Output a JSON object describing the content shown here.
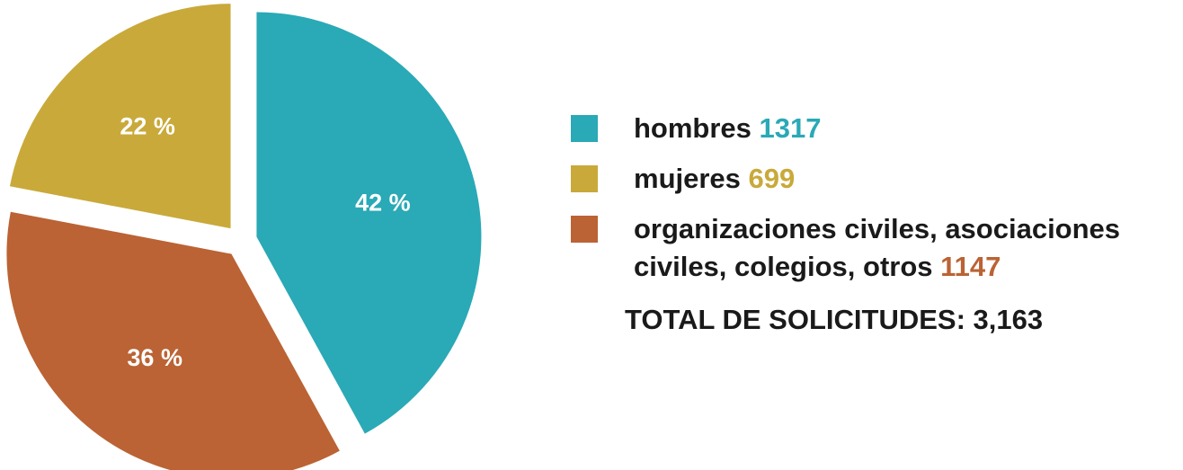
{
  "chart_data": {
    "type": "pie",
    "series": [
      {
        "name": "hombres",
        "color": "#2aa9b6",
        "values": [
          42
        ],
        "value_labels": [
          "42 %"
        ],
        "count": 1317
      },
      {
        "name": "mujeres",
        "color": "#c9a93a",
        "values": [
          22
        ],
        "value_labels": [
          "22 %"
        ],
        "count": 699
      },
      {
        "name": "organizaciones civiles, asociaciones civiles, colegios, otros",
        "color": "#bb6334",
        "values": [
          36
        ],
        "value_labels": [
          "36 %"
        ],
        "count": 1147
      }
    ],
    "annotation": "TOTAL DE SOLICITUDES: 3,163"
  }
}
